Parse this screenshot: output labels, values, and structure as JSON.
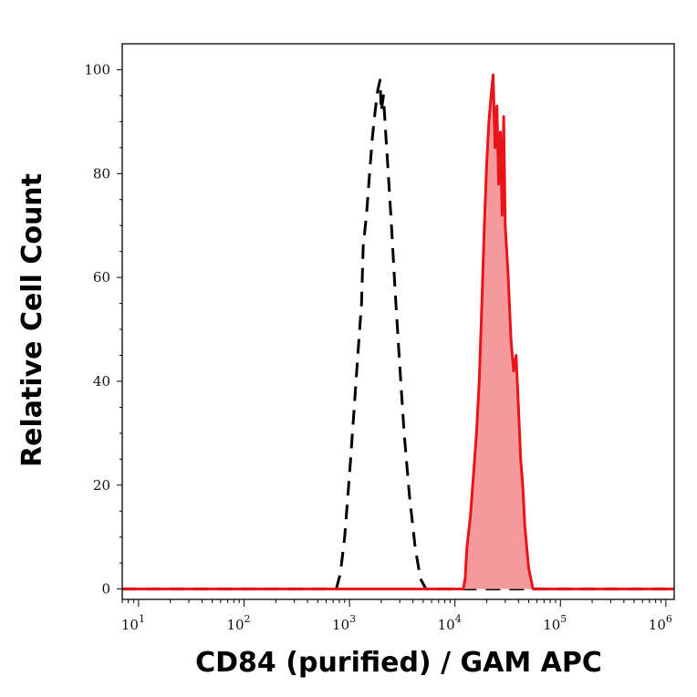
{
  "chart_data": {
    "type": "area",
    "title": "",
    "xlabel": "CD84 (purified) / GAM APC",
    "ylabel": "Relative Cell Count",
    "x_scale": "log",
    "xlim": [
      7,
      1200000
    ],
    "ylim": [
      -2,
      105
    ],
    "grid": false,
    "legend": "none",
    "x_ticks": [
      {
        "value": 10,
        "base": "10",
        "exp": "1"
      },
      {
        "value": 100,
        "base": "10",
        "exp": "2"
      },
      {
        "value": 1000,
        "base": "10",
        "exp": "3"
      },
      {
        "value": 10000,
        "base": "10",
        "exp": "4"
      },
      {
        "value": 100000,
        "base": "10",
        "exp": "5"
      },
      {
        "value": 1000000,
        "base": "10",
        "exp": "6"
      }
    ],
    "y_ticks": [
      {
        "value": 0,
        "label": "0"
      },
      {
        "value": 20,
        "label": "20"
      },
      {
        "value": 40,
        "label": "40"
      },
      {
        "value": 60,
        "label": "60"
      },
      {
        "value": 80,
        "label": "80"
      },
      {
        "value": 100,
        "label": "100"
      }
    ],
    "series": [
      {
        "style": "dashed",
        "color": "#000000",
        "x": [
          7,
          500,
          750,
          820,
          900,
          1000,
          1100,
          1200,
          1300,
          1350,
          1450,
          1550,
          1650,
          1750,
          1850,
          1950,
          2000,
          2100,
          2200,
          2300,
          2500,
          2700,
          3000,
          3300,
          3700,
          4200,
          4700,
          5300,
          6000,
          1200000
        ],
        "y": [
          0,
          0,
          0,
          3,
          10,
          22,
          34,
          45,
          55,
          66,
          72,
          80,
          87,
          92,
          96,
          98,
          92,
          95,
          88,
          82,
          70,
          58,
          43,
          30,
          18,
          8,
          2,
          0,
          0,
          0
        ]
      },
      {
        "style": "filled",
        "color": "#e8141a",
        "fill": "#f59a9c",
        "x": [
          7,
          10000,
          12000,
          12500,
          13000,
          14000,
          15000,
          16000,
          17000,
          18000,
          19000,
          20000,
          21000,
          22000,
          23000,
          24000,
          25000,
          26000,
          27000,
          28000,
          29000,
          30000,
          32000,
          34000,
          36000,
          38000,
          40000,
          42000,
          44000,
          46000,
          50000,
          55000,
          1200000
        ],
        "y": [
          0,
          0,
          0,
          2,
          8,
          14,
          22,
          30,
          40,
          55,
          70,
          82,
          90,
          95,
          99,
          85,
          93,
          78,
          88,
          72,
          91,
          70,
          60,
          48,
          42,
          45,
          35,
          25,
          20,
          12,
          4,
          0,
          0
        ]
      }
    ]
  }
}
